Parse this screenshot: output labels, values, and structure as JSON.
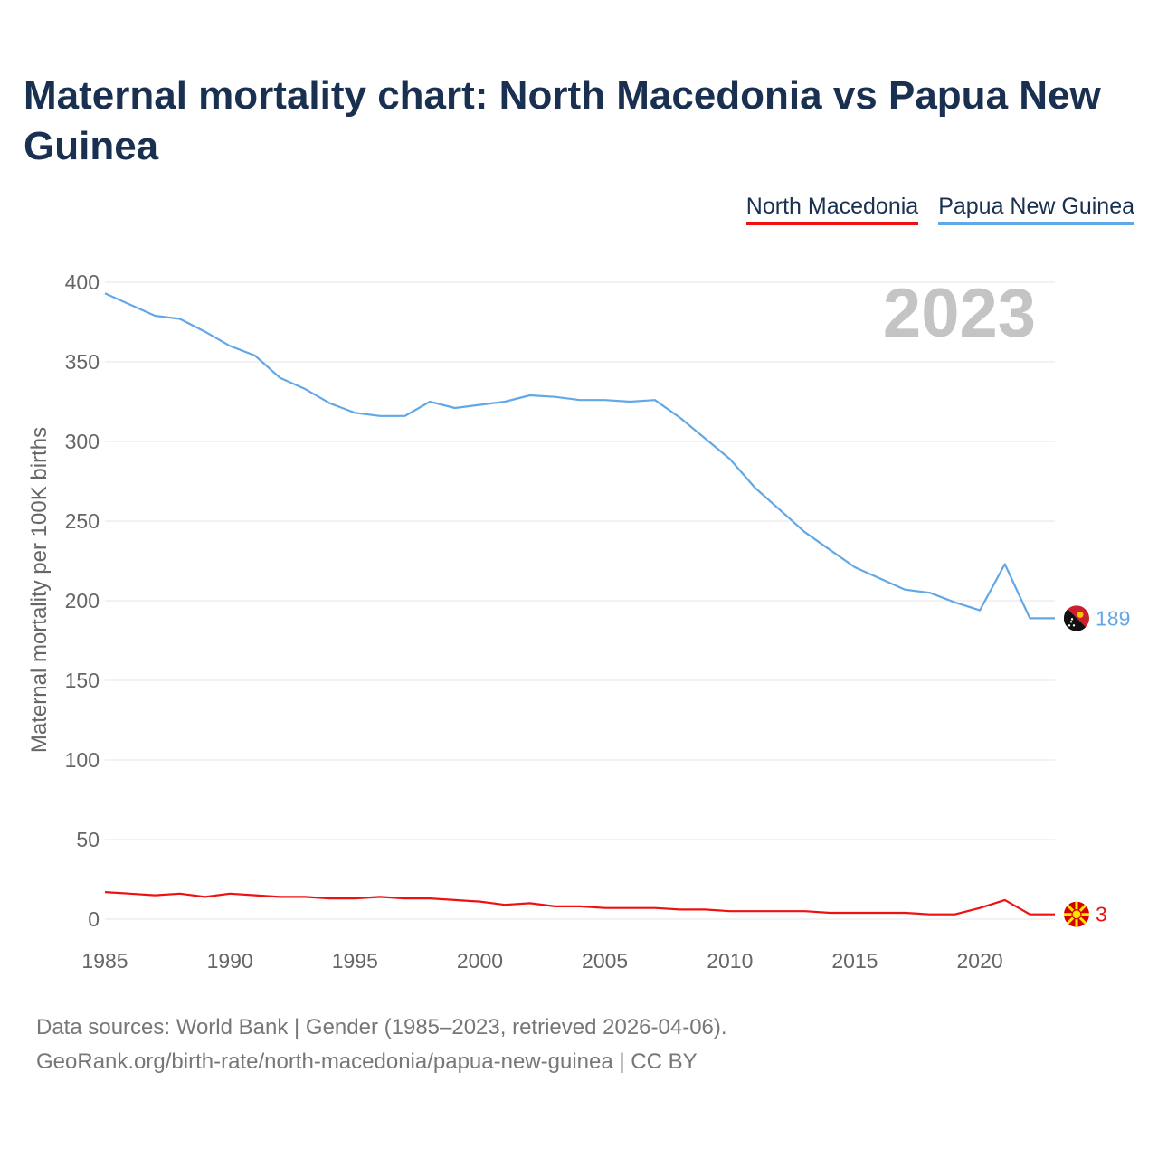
{
  "title": "Maternal mortality chart: North Macedonia vs Papua New Guinea",
  "legend": [
    "North Macedonia",
    "Papua New Guinea"
  ],
  "footer": {
    "line1": "Data sources: World Bank | Gender (1985–2023, retrieved 2026-04-06).",
    "line2": "GeoRank.org/birth-rate/north-macedonia/papua-new-guinea | CC BY"
  },
  "colors": {
    "north_macedonia": "#ee1111",
    "papua_new_guinea": "#62a8e6",
    "title": "#1a3050"
  },
  "chart_data": {
    "type": "line",
    "title": "Maternal mortality chart: North Macedonia vs Papua New Guinea",
    "xlabel": "",
    "ylabel": "Maternal mortality per 100K births",
    "year_label": "2023",
    "xlim": [
      1985,
      2023
    ],
    "ylim": [
      0,
      400
    ],
    "xticks": [
      1985,
      1990,
      1995,
      2000,
      2005,
      2010,
      2015,
      2020
    ],
    "yticks": [
      0,
      50,
      100,
      150,
      200,
      250,
      300,
      350,
      400
    ],
    "x": [
      1985,
      1986,
      1987,
      1988,
      1989,
      1990,
      1991,
      1992,
      1993,
      1994,
      1995,
      1996,
      1997,
      1998,
      1999,
      2000,
      2001,
      2002,
      2003,
      2004,
      2005,
      2006,
      2007,
      2008,
      2009,
      2010,
      2011,
      2012,
      2013,
      2014,
      2015,
      2016,
      2017,
      2018,
      2019,
      2020,
      2021,
      2022,
      2023
    ],
    "series": [
      {
        "name": "North Macedonia",
        "color": "#ee1111",
        "end_label": "3",
        "values": [
          17,
          16,
          15,
          16,
          14,
          16,
          15,
          14,
          14,
          13,
          13,
          14,
          13,
          13,
          12,
          11,
          9,
          10,
          8,
          8,
          7,
          7,
          7,
          6,
          6,
          5,
          5,
          5,
          5,
          4,
          4,
          4,
          4,
          3,
          3,
          7,
          12,
          3,
          3
        ]
      },
      {
        "name": "Papua New Guinea",
        "color": "#62a8e6",
        "end_label": "189",
        "values": [
          393,
          386,
          379,
          377,
          369,
          360,
          354,
          340,
          333,
          324,
          318,
          316,
          316,
          325,
          321,
          323,
          325,
          329,
          328,
          326,
          326,
          325,
          326,
          315,
          302,
          289,
          271,
          257,
          243,
          232,
          221,
          214,
          207,
          205,
          199,
          194,
          223,
          189,
          189
        ]
      }
    ]
  }
}
